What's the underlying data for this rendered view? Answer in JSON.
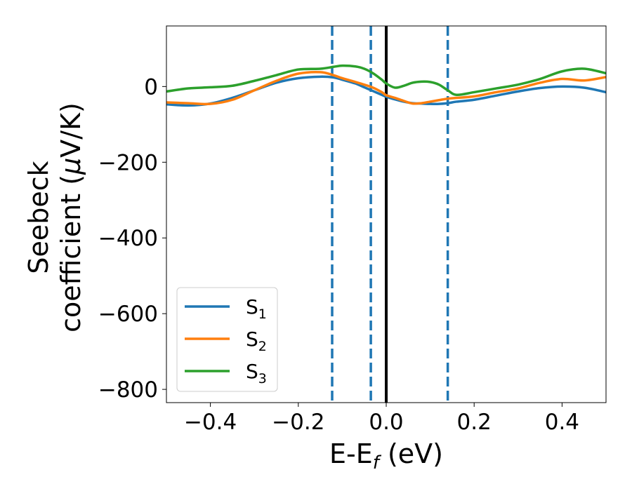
{
  "chart_data": {
    "type": "line",
    "title": "",
    "xlabel": {
      "main": "E-E",
      "sub": "f",
      "unit": " (eV)"
    },
    "ylabel": {
      "line1": "Seebeck",
      "line2_prefix": "coefficient  (",
      "mu": "μ",
      "line2_suffix": "V/K)"
    },
    "xlim": [
      -0.5,
      0.5
    ],
    "ylim": [
      -835,
      160
    ],
    "xticks": [
      -0.4,
      -0.2,
      0.0,
      0.2,
      0.4
    ],
    "xtick_labels": [
      "−0.4",
      "−0.2",
      "0.0",
      "0.2",
      "0.4"
    ],
    "yticks": [
      0,
      -200,
      -400,
      -600,
      -800
    ],
    "ytick_labels": [
      "0",
      "−200",
      "−400",
      "−600",
      "−800"
    ],
    "grid": false,
    "legend_position": "lower-left",
    "vertical_lines": [
      {
        "x": -0.123,
        "style": "dashed",
        "color": "#1f77b4"
      },
      {
        "x": -0.035,
        "style": "dashed",
        "color": "#1f77b4"
      },
      {
        "x": 0.0,
        "style": "solid",
        "color": "#000000"
      },
      {
        "x": 0.14,
        "style": "dashed",
        "color": "#1f77b4"
      }
    ],
    "x": [
      -0.5,
      -0.45,
      -0.4,
      -0.35,
      -0.3,
      -0.25,
      -0.2,
      -0.15,
      -0.12,
      -0.1,
      -0.07,
      -0.05,
      -0.03,
      -0.01,
      0.0,
      0.02,
      0.04,
      0.06,
      0.08,
      0.1,
      0.12,
      0.14,
      0.16,
      0.2,
      0.25,
      0.3,
      0.35,
      0.4,
      0.45,
      0.5
    ],
    "series": [
      {
        "name": "S",
        "sub": "1",
        "color": "#1f77b4",
        "values": [
          -47,
          -50,
          -45,
          -30,
          -10,
          10,
          22,
          26,
          24,
          18,
          8,
          -2,
          -12,
          -22,
          -27,
          -34,
          -40,
          -44,
          -45,
          -46,
          -46,
          -44,
          -40,
          -35,
          -24,
          -13,
          -4,
          0,
          -3,
          -15
        ]
      },
      {
        "name": "S",
        "sub": "2",
        "color": "#ff7f0e",
        "values": [
          -42,
          -44,
          -46,
          -35,
          -10,
          15,
          34,
          38,
          30,
          22,
          12,
          5,
          -3,
          -15,
          -23,
          -30,
          -38,
          -45,
          -44,
          -40,
          -36,
          -32,
          -30,
          -26,
          -15,
          -5,
          10,
          20,
          16,
          25
        ]
      },
      {
        "name": "S",
        "sub": "3",
        "color": "#2ca02c",
        "values": [
          -13,
          -5,
          -2,
          2,
          15,
          30,
          45,
          47,
          52,
          55,
          53,
          47,
          35,
          18,
          8,
          -3,
          2,
          10,
          13,
          12,
          5,
          -10,
          -22,
          -15,
          -5,
          5,
          20,
          40,
          47,
          35
        ]
      }
    ]
  }
}
